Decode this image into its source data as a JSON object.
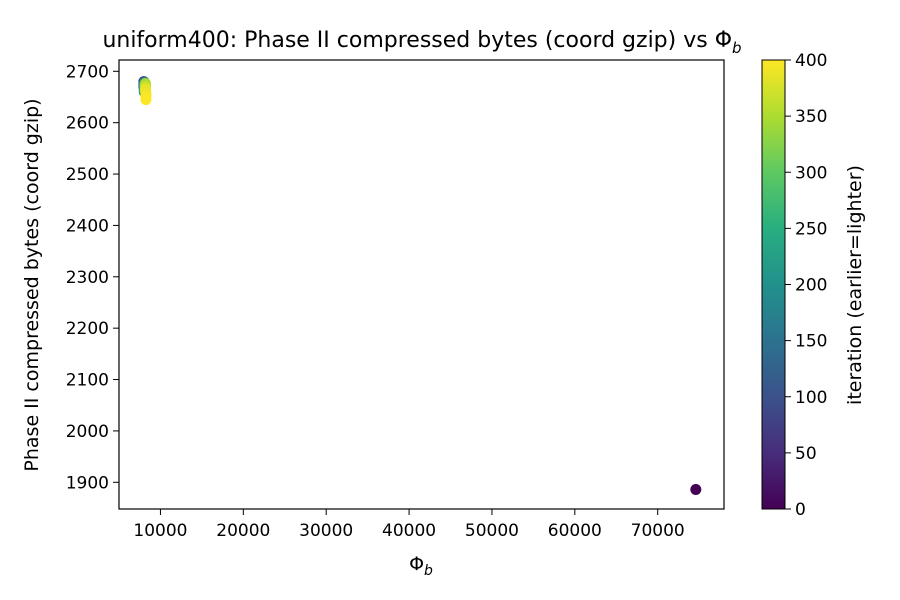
{
  "chart_data": {
    "type": "scatter",
    "title": "uniform400: Phase II compressed bytes (coord gzip) vs Φ",
    "title_sub": "b",
    "xlabel": "Φ",
    "xlabel_sub": "b",
    "ylabel": "Phase II compressed bytes (coord gzip)",
    "xlim": [
      5000,
      78000
    ],
    "ylim": [
      1848,
      2722
    ],
    "xticks": [
      10000,
      20000,
      30000,
      40000,
      50000,
      60000,
      70000
    ],
    "xtick_labels": [
      "10000",
      "20000",
      "30000",
      "40000",
      "50000",
      "60000",
      "70000"
    ],
    "yticks": [
      1900,
      2000,
      2100,
      2200,
      2300,
      2400,
      2500,
      2600,
      2700
    ],
    "ytick_labels": [
      "1900",
      "2000",
      "2100",
      "2200",
      "2300",
      "2400",
      "2500",
      "2600",
      "2700"
    ],
    "colorbar": {
      "label": "iteration (earlier=lighter)",
      "colormap": "viridis",
      "range": [
        0,
        400
      ],
      "ticks": [
        0,
        50,
        100,
        150,
        200,
        250,
        300,
        350,
        400
      ],
      "tick_labels": [
        "0",
        "50",
        "100",
        "150",
        "200",
        "250",
        "300",
        "350",
        "400"
      ]
    },
    "grid": false,
    "points": [
      {
        "x": 74600,
        "y": 1886,
        "iteration": 0
      },
      {
        "x": 8000,
        "y": 2680,
        "iteration": 60
      },
      {
        "x": 8000,
        "y": 2675,
        "iteration": 100
      },
      {
        "x": 8000,
        "y": 2670,
        "iteration": 120
      },
      {
        "x": 8050,
        "y": 2665,
        "iteration": 150
      },
      {
        "x": 8050,
        "y": 2660,
        "iteration": 180
      },
      {
        "x": 8100,
        "y": 2678,
        "iteration": 220
      },
      {
        "x": 8100,
        "y": 2672,
        "iteration": 260
      },
      {
        "x": 8150,
        "y": 2668,
        "iteration": 300
      },
      {
        "x": 8150,
        "y": 2662,
        "iteration": 330
      },
      {
        "x": 8200,
        "y": 2676,
        "iteration": 350
      },
      {
        "x": 8200,
        "y": 2670,
        "iteration": 370
      },
      {
        "x": 8200,
        "y": 2665,
        "iteration": 385
      },
      {
        "x": 8250,
        "y": 2658,
        "iteration": 390
      },
      {
        "x": 8250,
        "y": 2652,
        "iteration": 395
      },
      {
        "x": 8250,
        "y": 2645,
        "iteration": 400
      }
    ]
  }
}
